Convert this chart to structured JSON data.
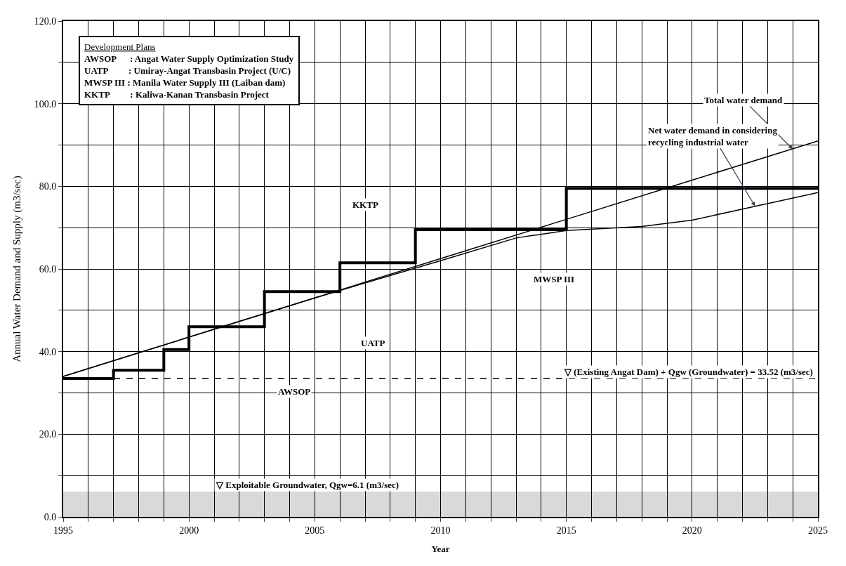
{
  "chart_data": {
    "type": "line",
    "xlabel": "Year",
    "ylabel": "Annual Water Demand and Supply (m3/sec)",
    "xlim": [
      1995,
      2025
    ],
    "xticks": [
      1995,
      {
        "value": 1996,
        "label": null
      },
      {
        "value": 1997,
        "label": null
      },
      {
        "value": 1998,
        "label": null
      },
      {
        "value": 1999,
        "label": null
      },
      2000,
      {
        "value": 2001,
        "label": null
      },
      {
        "value": 2002,
        "label": null
      },
      {
        "value": 2003,
        "label": null
      },
      {
        "value": 2004,
        "label": null
      },
      2005,
      {
        "value": 2006,
        "label": null
      },
      {
        "value": 2007,
        "label": null
      },
      {
        "value": 2008,
        "label": null
      },
      {
        "value": 2009,
        "label": null
      },
      2010,
      {
        "value": 2011,
        "label": null
      },
      {
        "value": 2012,
        "label": null
      },
      {
        "value": 2013,
        "label": null
      },
      {
        "value": 2014,
        "label": null
      },
      2015,
      {
        "value": 2016,
        "label": null
      },
      {
        "value": 2017,
        "label": null
      },
      {
        "value": 2018,
        "label": null
      },
      {
        "value": 2019,
        "label": null
      },
      2020,
      {
        "value": 2021,
        "label": null
      },
      {
        "value": 2022,
        "label": null
      },
      {
        "value": 2023,
        "label": null
      },
      {
        "value": 2024,
        "label": null
      },
      2025
    ],
    "ylim": [
      0,
      120
    ],
    "yticks": [
      {
        "value": 0,
        "label": "0.0"
      },
      {
        "value": 10,
        "label": null
      },
      {
        "value": 20,
        "label": "20.0"
      },
      {
        "value": 30,
        "label": null
      },
      {
        "value": 40,
        "label": "40.0"
      },
      {
        "value": 50,
        "label": null
      },
      {
        "value": 60,
        "label": "60.0"
      },
      {
        "value": 70,
        "label": null
      },
      {
        "value": 80,
        "label": "80.0"
      },
      {
        "value": 90,
        "label": null
      },
      {
        "value": 100,
        "label": "100.0"
      },
      {
        "value": 110,
        "label": null
      },
      {
        "value": 120,
        "label": "120.0"
      }
    ],
    "grid": true,
    "marker": "none",
    "series": [
      {
        "type": "step",
        "color": "#000000",
        "x": [
          1995,
          1997,
          1999,
          2000,
          2003,
          2006,
          2009,
          2015,
          2025
        ],
        "values": [
          33.5,
          35.5,
          40.5,
          46,
          54.5,
          61.5,
          69.5,
          79.5,
          79.5
        ]
      },
      {
        "color": "#000000",
        "x": [
          1995,
          2000,
          2005,
          2010,
          2015,
          2020,
          2025
        ],
        "values": [
          34,
          43.5,
          53,
          62.5,
          72,
          81.5,
          91
        ]
      },
      {
        "color": "#000000",
        "x": [
          1995,
          2005,
          2010,
          2013,
          2015,
          2018,
          2020,
          2022,
          2025
        ],
        "values": [
          34,
          53,
          62,
          67.5,
          69.3,
          70.3,
          71.8,
          74.5,
          78.5
        ]
      }
    ],
    "ref_lines": [
      {
        "axis": "y",
        "value": 33.52,
        "label": "▽ (Existing Angat Dam) + Qgw (Groundwater) = 33.52 (m3/sec)",
        "color": "#000000",
        "line_style": "dashed"
      }
    ],
    "bands": [
      {
        "axis": "y",
        "from": 0,
        "to": 6.1,
        "label": "▽ Exploitable Groundwater, Qgw=6.1 (m3/sec)",
        "color": "#d9d9d9"
      }
    ],
    "annotations": [
      "Development Plans\nAWSOP      : Angat Water Supply Optimization Study\nUATP         : Umiray-Angat Transbasin Project (U/C)\nMWSP III : Manila Water Supply III (Laiban dam)\nKKTP         : Kaliwa-Kanan Transbasin Project",
      {
        "text": "Total water demand",
        "x": 2024,
        "y": 89
      },
      {
        "text": "Net water demand in considering\nrecycling industrial water",
        "x": 2022.5,
        "y": 75.2
      },
      "KKTP",
      "MWSP III",
      "UATP",
      "AWSOP"
    ]
  }
}
